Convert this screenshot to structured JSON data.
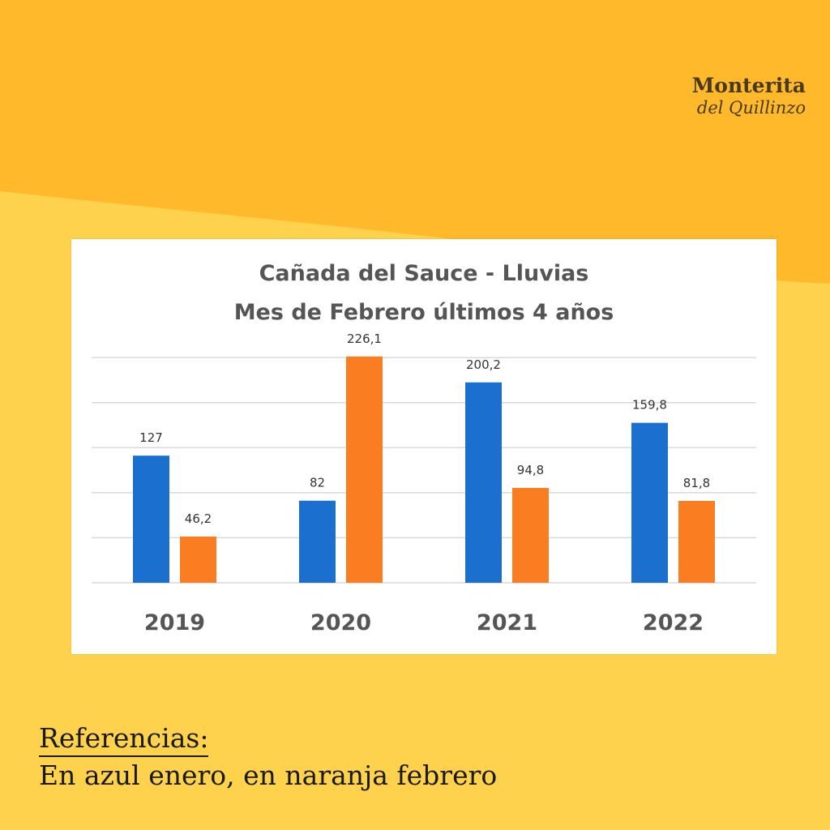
{
  "brand": {
    "line1": "Monterita",
    "line2": "del Quillinzo"
  },
  "colors": {
    "background": "#ffd24d",
    "background_top": "#ffb92a",
    "enero": "#1a6fcf",
    "febrero": "#fb7d22",
    "grid": "#d9d9d9",
    "label": "#333333",
    "axis": "#555555"
  },
  "chart_data": {
    "type": "bar",
    "title": "Cañada  del Sauce - Lluvias",
    "subtitle": "Mes de Febrero últimos  4 años",
    "categories": [
      "2019",
      "2020",
      "2021",
      "2022"
    ],
    "series": [
      {
        "values": [
          127,
          82,
          200.2,
          159.8
        ],
        "labels": [
          "127",
          "82",
          "200,2",
          "159,8"
        ]
      },
      {
        "values": [
          46.2,
          226.1,
          94.8,
          81.8
        ],
        "labels": [
          "46,2",
          "226,1",
          "94,8",
          "81,8"
        ]
      }
    ],
    "xlabel": "",
    "ylabel": "",
    "ylim": [
      0,
      250
    ],
    "grid": true,
    "legend": "none"
  },
  "references": {
    "title": "Referencias:",
    "text": "En azul enero, en naranja febrero"
  }
}
